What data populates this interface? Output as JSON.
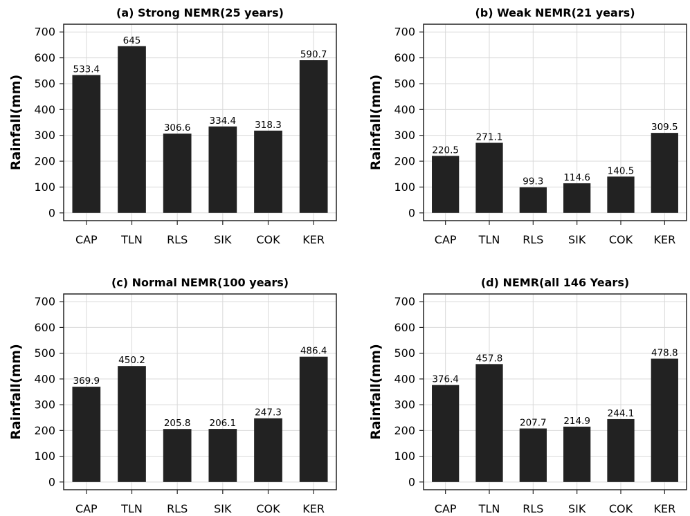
{
  "chart_data": [
    {
      "type": "bar",
      "title": "(a) Strong NEMR(25 years)",
      "ylabel": "Rainfall(mm)",
      "xlabel": "",
      "categories": [
        "CAP",
        "TLN",
        "RLS",
        "SIK",
        "COK",
        "KER"
      ],
      "values": [
        533.4,
        645,
        306.6,
        334.4,
        318.3,
        590.7
      ],
      "value_labels": [
        "533.4",
        "645",
        "306.6",
        "334.4",
        "318.3",
        "590.7"
      ],
      "ylim": [
        -30,
        730
      ],
      "yticks": [
        0,
        100,
        200,
        300,
        400,
        500,
        600,
        700
      ],
      "grid": true,
      "bar_color": "#222222"
    },
    {
      "type": "bar",
      "title": "(b) Weak NEMR(21 years)",
      "ylabel": "Rainfall(mm)",
      "xlabel": "",
      "categories": [
        "CAP",
        "TLN",
        "RLS",
        "SIK",
        "COK",
        "KER"
      ],
      "values": [
        220.5,
        271.1,
        99.3,
        114.6,
        140.5,
        309.5
      ],
      "value_labels": [
        "220.5",
        "271.1",
        "99.3",
        "114.6",
        "140.5",
        "309.5"
      ],
      "ylim": [
        -30,
        730
      ],
      "yticks": [
        0,
        100,
        200,
        300,
        400,
        500,
        600,
        700
      ],
      "grid": true,
      "bar_color": "#222222"
    },
    {
      "type": "bar",
      "title": "(c) Normal NEMR(100 years)",
      "ylabel": "Rainfall(mm)",
      "xlabel": "",
      "categories": [
        "CAP",
        "TLN",
        "RLS",
        "SIK",
        "COK",
        "KER"
      ],
      "values": [
        369.9,
        450.2,
        205.8,
        206.1,
        247.3,
        486.4
      ],
      "value_labels": [
        "369.9",
        "450.2",
        "205.8",
        "206.1",
        "247.3",
        "486.4"
      ],
      "ylim": [
        -30,
        730
      ],
      "yticks": [
        0,
        100,
        200,
        300,
        400,
        500,
        600,
        700
      ],
      "grid": true,
      "bar_color": "#222222"
    },
    {
      "type": "bar",
      "title": "(d) NEMR(all 146 Years)",
      "ylabel": "Rainfall(mm)",
      "xlabel": "",
      "categories": [
        "CAP",
        "TLN",
        "RLS",
        "SIK",
        "COK",
        "KER"
      ],
      "values": [
        376.4,
        457.8,
        207.7,
        214.9,
        244.1,
        478.8
      ],
      "value_labels": [
        "376.4",
        "457.8",
        "207.7",
        "214.9",
        "244.1",
        "478.8"
      ],
      "ylim": [
        -30,
        730
      ],
      "yticks": [
        0,
        100,
        200,
        300,
        400,
        500,
        600,
        700
      ],
      "grid": true,
      "bar_color": "#222222"
    }
  ]
}
